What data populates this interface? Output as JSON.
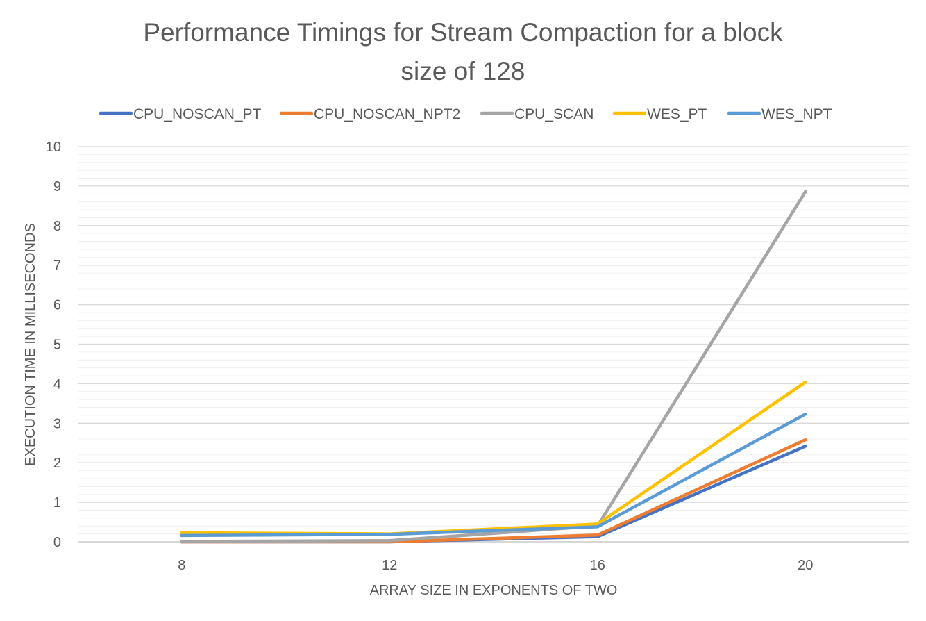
{
  "chart_data": {
    "type": "line",
    "title_lines": [
      "Performance Timings for Stream Compaction for a block",
      "size of 128"
    ],
    "xlabel": "ARRAY SIZE IN EXPONENTS OF TWO",
    "ylabel": "EXECUTION TIME IN MILLISECONDS",
    "categories": [
      "8",
      "12",
      "16",
      "20"
    ],
    "y_ticks": [
      "0",
      "1",
      "2",
      "3",
      "4",
      "5",
      "6",
      "7",
      "8",
      "9",
      "10"
    ],
    "ylim": [
      0,
      10
    ],
    "y_major_step": 1,
    "y_minor_step": 0.2,
    "grid": true,
    "legend_position": "top",
    "series": [
      {
        "name": "CPU_NOSCAN_PT",
        "color": "#4472c4",
        "values": [
          0.0,
          0.0,
          0.13,
          2.42
        ]
      },
      {
        "name": "CPU_NOSCAN_NPT2",
        "color": "#ed7d31",
        "values": [
          0.0,
          0.0,
          0.17,
          2.58
        ]
      },
      {
        "name": "CPU_SCAN",
        "color": "#a5a5a5",
        "values": [
          0.01,
          0.03,
          0.4,
          8.86
        ]
      },
      {
        "name": "WES_PT",
        "color": "#ffc000",
        "values": [
          0.23,
          0.2,
          0.45,
          4.04
        ]
      },
      {
        "name": "WES_NPT",
        "color": "#5b9bd5",
        "values": [
          0.16,
          0.19,
          0.38,
          3.23
        ]
      }
    ]
  }
}
